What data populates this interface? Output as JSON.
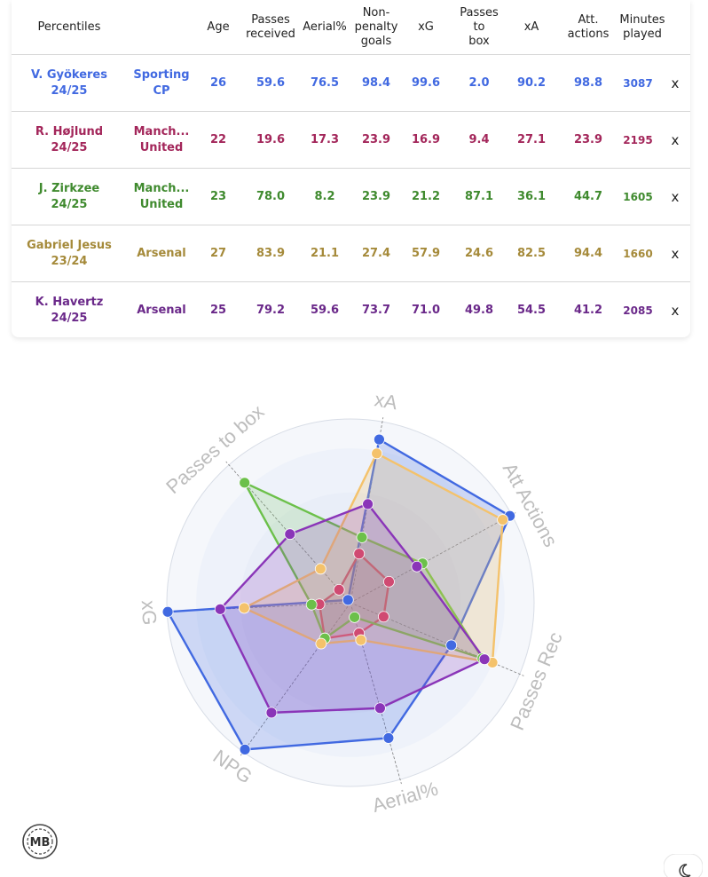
{
  "table": {
    "headers": {
      "percentiles": "Percentiles",
      "age": "Age",
      "passes_received": "Passes\nreceived",
      "aerial": "Aerial%",
      "npg": "Non-\npenalty\ngoals",
      "xg": "xG",
      "passes_box": "Passes\nto\nbox",
      "xa": "xA",
      "att_actions": "Att.\nactions",
      "minutes": "Minutes\nplayed"
    },
    "rows": [
      {
        "player": "V. Gyökeres\n24/25",
        "team": "Sporting\nCP",
        "age": "26",
        "passes_received": "59.6",
        "aerial": "76.5",
        "npg": "98.4",
        "xg": "99.6",
        "passes_box": "2.0",
        "xa": "90.2",
        "att_actions": "98.8",
        "minutes": "3087",
        "remove": "x"
      },
      {
        "player": "R. Højlund\n24/25",
        "team": "Manch...\nUnited",
        "age": "22",
        "passes_received": "19.6",
        "aerial": "17.3",
        "npg": "23.9",
        "xg": "16.9",
        "passes_box": "9.4",
        "xa": "27.1",
        "att_actions": "23.9",
        "minutes": "2195",
        "remove": "x"
      },
      {
        "player": "J. Zirkzee\n24/25",
        "team": "Manch...\nUnited",
        "age": "23",
        "passes_received": "78.0",
        "aerial": "8.2",
        "npg": "23.9",
        "xg": "21.2",
        "passes_box": "87.1",
        "xa": "36.1",
        "att_actions": "44.7",
        "minutes": "1605",
        "remove": "x"
      },
      {
        "player": "Gabriel Jesus\n23/24",
        "team": "Arsenal",
        "age": "27",
        "passes_received": "83.9",
        "aerial": "21.1",
        "npg": "27.4",
        "xg": "57.9",
        "passes_box": "24.6",
        "xa": "82.5",
        "att_actions": "94.4",
        "minutes": "1660",
        "remove": "x"
      },
      {
        "player": "K. Havertz\n24/25",
        "team": "Arsenal",
        "age": "25",
        "passes_received": "79.2",
        "aerial": "59.6",
        "npg": "73.7",
        "xg": "71.0",
        "passes_box": "49.8",
        "xa": "54.5",
        "att_actions": "41.2",
        "minutes": "2085",
        "remove": "x"
      }
    ]
  },
  "colors": {
    "gyokeres": "#4169e1",
    "hojlund": "#a3265a",
    "zirkzee": "#3f8a2e",
    "jesus": "#a58a3a",
    "havertz": "#6a2889"
  },
  "chart_data": {
    "type": "radar",
    "axes": [
      "xA",
      "Att Actions",
      "Passes Rec",
      "Aerial%",
      "NPG",
      "xG",
      "Passes to box"
    ],
    "range": [
      0,
      100
    ],
    "series": [
      {
        "name": "V. Gyökeres",
        "values": [
          90.2,
          98.8,
          59.6,
          76.5,
          98.4,
          99.6,
          2.0
        ],
        "stroke": "#4169e1",
        "fill": "rgba(65,105,225,0.22)",
        "point": "#4169e1"
      },
      {
        "name": "R. Højlund",
        "values": [
          27.1,
          23.9,
          19.6,
          17.3,
          23.9,
          16.9,
          9.4
        ],
        "stroke": "#d9456e",
        "fill": "rgba(217,69,110,0.18)",
        "point": "#d04a72"
      },
      {
        "name": "J. Zirkzee",
        "values": [
          36.1,
          44.7,
          78.0,
          8.2,
          23.9,
          21.2,
          87.1
        ],
        "stroke": "#6cc04a",
        "fill": "rgba(108,192,74,0.18)",
        "point": "#6cc04a"
      },
      {
        "name": "Gabriel Jesus",
        "values": [
          82.5,
          94.4,
          83.9,
          21.1,
          27.4,
          57.9,
          24.6
        ],
        "stroke": "#f4c26b",
        "fill": "rgba(244,194,107,0.25)",
        "point": "#f4c26b"
      },
      {
        "name": "K. Havertz",
        "values": [
          54.5,
          41.2,
          79.2,
          59.6,
          73.7,
          71.0,
          49.8
        ],
        "stroke": "#8a35b8",
        "fill": "rgba(138,53,184,0.20)",
        "point": "#8a35b8"
      }
    ]
  },
  "logo": {
    "text": "MB"
  },
  "icons": {
    "theme_toggle": "moon-icon",
    "logo": "mb-logo-icon"
  }
}
